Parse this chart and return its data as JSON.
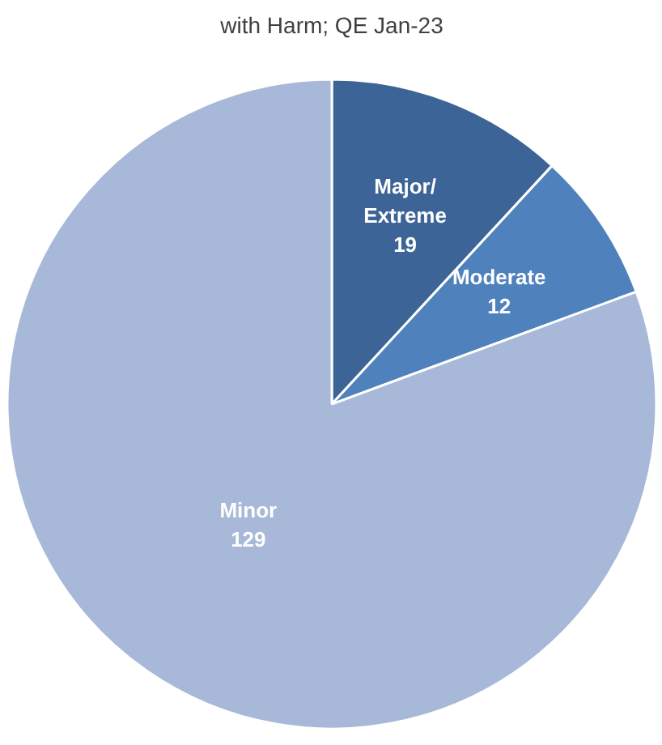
{
  "chart_data": {
    "type": "pie",
    "title": "with Harm; QE Jan-23",
    "categories": [
      "Major/ Extreme",
      "Moderate",
      "Minor"
    ],
    "values": [
      19,
      12,
      129
    ],
    "colors": [
      "#3c6497",
      "#4f81bd",
      "#a7b8d8"
    ],
    "data_labels": true
  }
}
